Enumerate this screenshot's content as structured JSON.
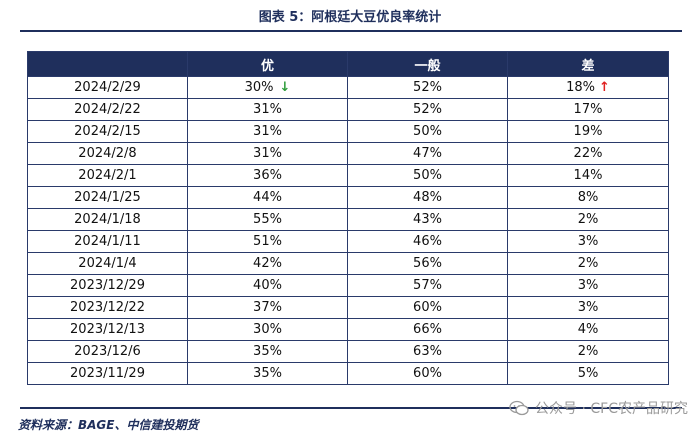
{
  "title": "图表 5：阿根廷大豆优良率统计",
  "table": {
    "headers": [
      "",
      "优",
      "一般",
      "差"
    ],
    "rows": [
      {
        "date": "2024/2/29",
        "you": "30%",
        "yiban": "52%",
        "cha": "18%",
        "you_arrow": "↓",
        "cha_arrow": "↑"
      },
      {
        "date": "2024/2/22",
        "you": "31%",
        "yiban": "52%",
        "cha": "17%"
      },
      {
        "date": "2024/2/15",
        "you": "31%",
        "yiban": "50%",
        "cha": "19%"
      },
      {
        "date": "2024/2/8",
        "you": "31%",
        "yiban": "47%",
        "cha": "22%"
      },
      {
        "date": "2024/2/1",
        "you": "36%",
        "yiban": "50%",
        "cha": "14%"
      },
      {
        "date": "2024/1/25",
        "you": "44%",
        "yiban": "48%",
        "cha": "8%"
      },
      {
        "date": "2024/1/18",
        "you": "55%",
        "yiban": "43%",
        "cha": "2%"
      },
      {
        "date": "2024/1/11",
        "you": "51%",
        "yiban": "46%",
        "cha": "3%"
      },
      {
        "date": "2024/1/4",
        "you": "42%",
        "yiban": "56%",
        "cha": "2%"
      },
      {
        "date": "2023/12/29",
        "you": "40%",
        "yiban": "57%",
        "cha": "3%"
      },
      {
        "date": "2023/12/22",
        "you": "37%",
        "yiban": "60%",
        "cha": "3%"
      },
      {
        "date": "2023/12/13",
        "you": "30%",
        "yiban": "66%",
        "cha": "4%"
      },
      {
        "date": "2023/12/6",
        "you": "35%",
        "yiban": "63%",
        "cha": "2%"
      },
      {
        "date": "2023/11/29",
        "you": "35%",
        "yiban": "60%",
        "cha": "5%"
      }
    ]
  },
  "source": "资料来源：BAGE、中信建投期货",
  "watermark": "公众号 · CFC农产品研究",
  "colors": {
    "header_bg": "#1f2f5c",
    "arrow_down": "#2e9c3a",
    "arrow_up": "#e02020"
  }
}
